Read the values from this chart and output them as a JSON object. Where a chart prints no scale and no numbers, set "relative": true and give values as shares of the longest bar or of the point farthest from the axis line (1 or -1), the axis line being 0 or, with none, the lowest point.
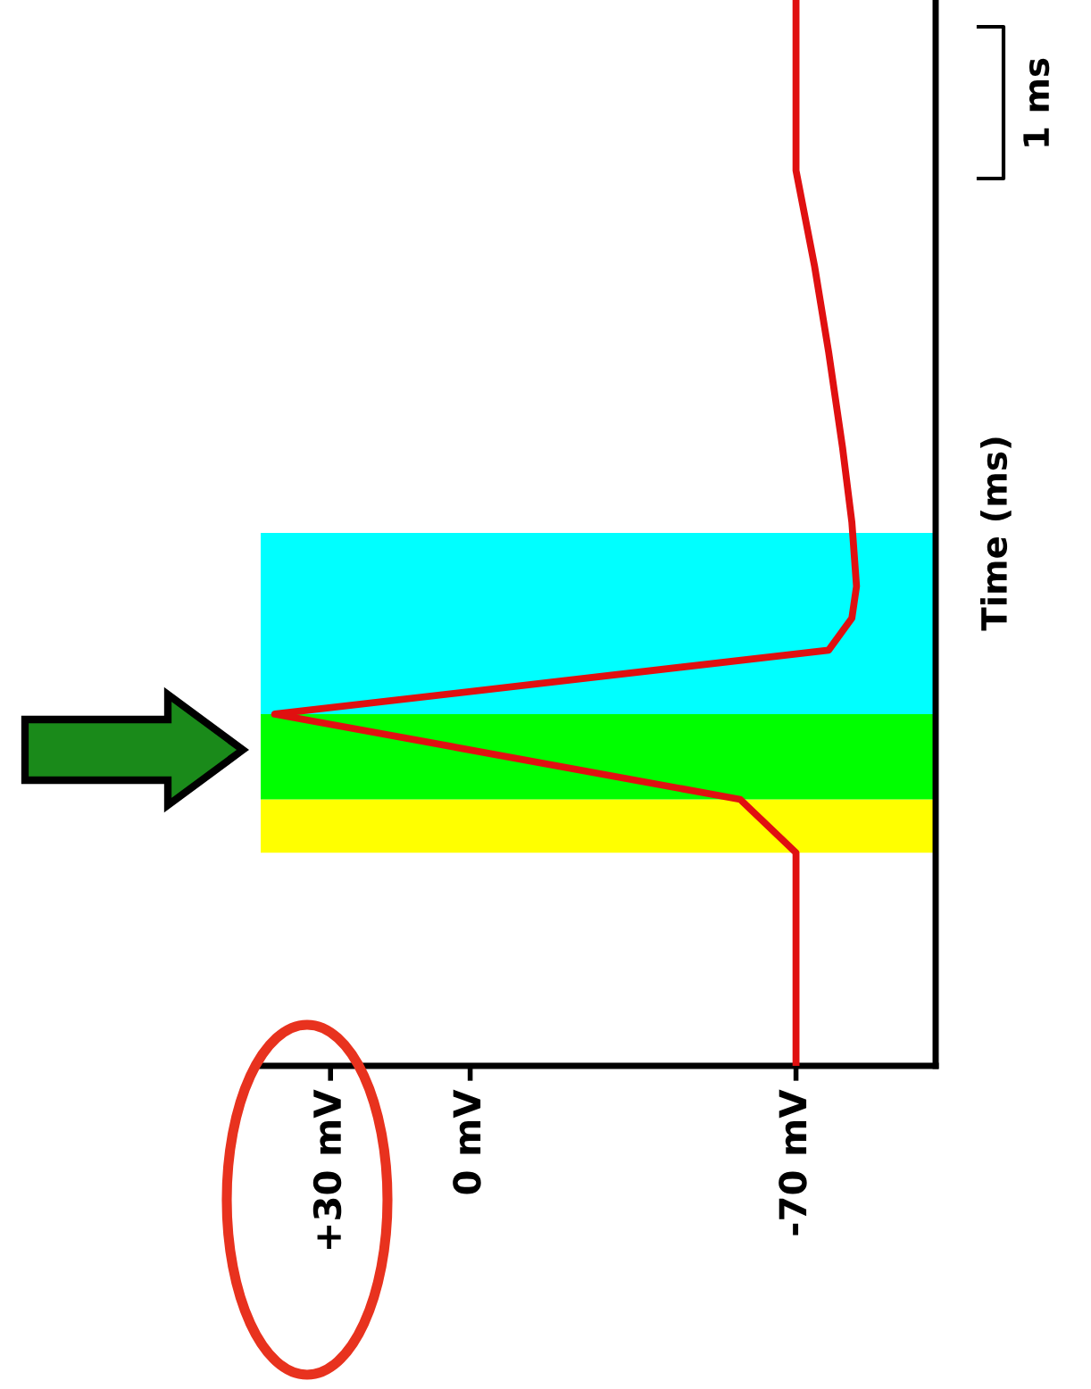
{
  "chart_data": {
    "type": "line",
    "ylabel": "Time (ms)",
    "series": [
      {
        "color": "#e01010",
        "x": [
          -70,
          -70,
          -58,
          42,
          -77,
          -82,
          -83,
          -82,
          -80,
          -77,
          -74,
          -70,
          -70
        ],
        "values": [
          0,
          0.2,
          0.25,
          0.33,
          0.39,
          0.42,
          0.45,
          0.51,
          0.58,
          0.67,
          0.75,
          0.84,
          1
        ]
      }
    ],
    "relative": true,
    "xlim": [
      45,
      -100
    ],
    "xticks": [
      {
        "value": 30,
        "label": "+30 mV"
      },
      {
        "value": 0,
        "label": "0 mV"
      },
      {
        "value": -70,
        "label": "-70 mV"
      }
    ],
    "tick_labels": "x",
    "grid": false,
    "legend": false,
    "marker": "none",
    "line_style": "solid",
    "bands": [
      {
        "axis": "y",
        "from": 0.2,
        "to": 0.25,
        "color": "#ffff00"
      },
      {
        "axis": "y",
        "from": 0.25,
        "to": 0.33,
        "color": "#00ff00"
      },
      {
        "axis": "y",
        "from": 0.33,
        "to": 0.5,
        "color": "#00ffff"
      }
    ],
    "annotations": [
      "1 ms"
    ]
  }
}
